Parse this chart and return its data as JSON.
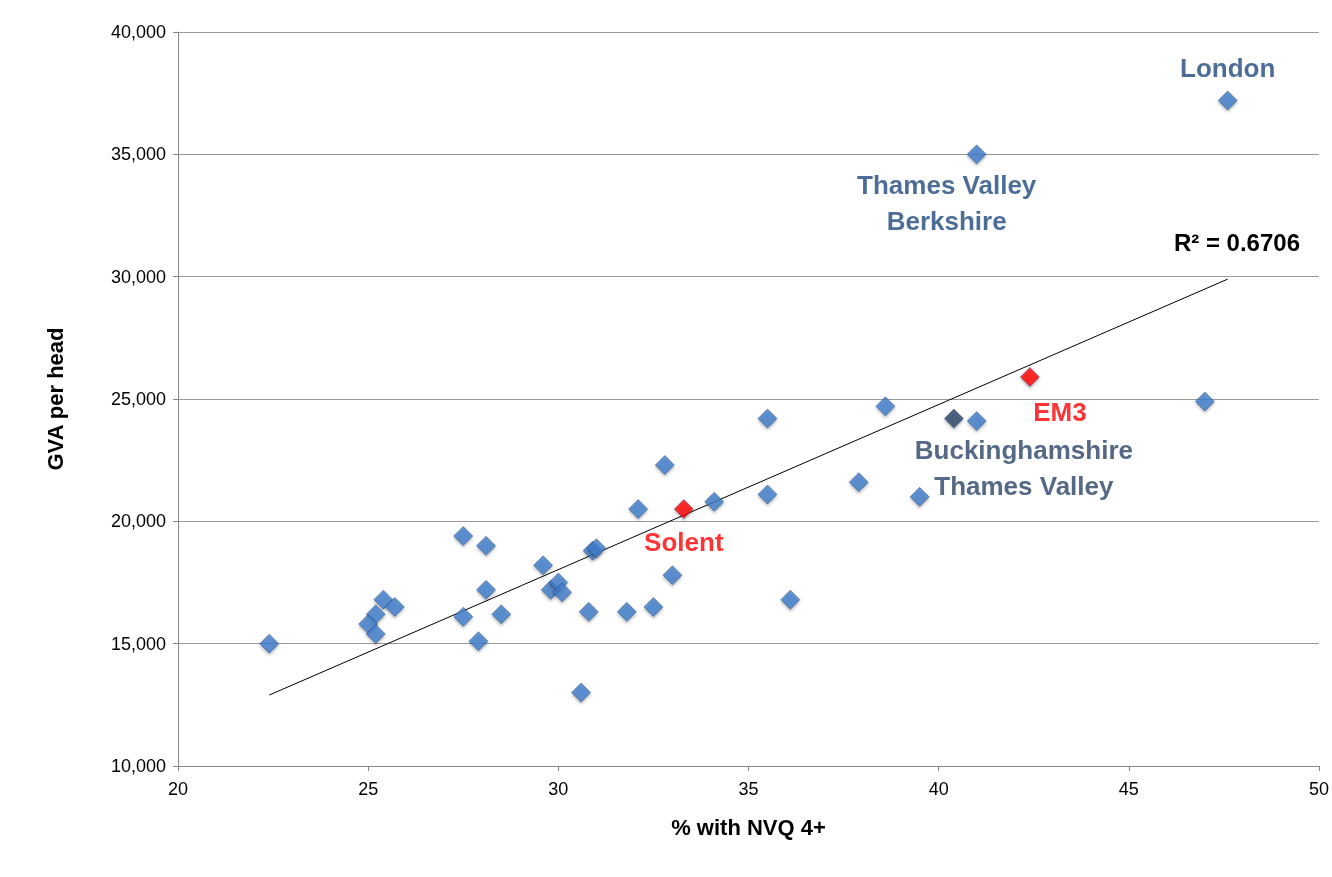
{
  "chart_data": {
    "type": "scatter",
    "xlabel": "% with NVQ 4+",
    "ylabel": "GVA per head",
    "xlim": [
      20,
      50
    ],
    "xticks": [
      20,
      25,
      30,
      35,
      40,
      45,
      50
    ],
    "ylim": [
      10000,
      40000
    ],
    "yticks": [
      {
        "value": 10000,
        "label": "10,000"
      },
      {
        "value": 15000,
        "label": "15,000"
      },
      {
        "value": 20000,
        "label": "20,000"
      },
      {
        "value": 25000,
        "label": "25,000"
      },
      {
        "value": 30000,
        "label": "30,000"
      },
      {
        "value": 35000,
        "label": "35,000"
      },
      {
        "value": 40000,
        "label": "40,000"
      }
    ],
    "grid": "y",
    "marker": "diamond",
    "series": [
      {
        "color": "#3d7cc9",
        "x": [
          22.4,
          25.4,
          25.7,
          25.2,
          25.0,
          25.2,
          27.5,
          28.1,
          28.1,
          27.5,
          28.5,
          27.9,
          29.6,
          29.8,
          30.0,
          30.1,
          30.8,
          31.8,
          32.5,
          30.6,
          30.9,
          31.0,
          32.1,
          32.8,
          33.3,
          34.1,
          35.5,
          35.5,
          33.0,
          36.1,
          37.9,
          38.6,
          40.4,
          41.0,
          39.5,
          47.6,
          41.0,
          42.4,
          47.0
        ],
        "values": [
          15000,
          16800,
          16500,
          16200,
          15800,
          15400,
          19400,
          19000,
          17200,
          16100,
          16200,
          15100,
          18200,
          17200,
          17500,
          17100,
          16300,
          16300,
          16500,
          13000,
          18800,
          18900,
          20500,
          22300,
          20500,
          20800,
          24200,
          21100,
          17800,
          16800,
          21600,
          24700,
          24200,
          24100,
          21000,
          37200,
          35000,
          25900,
          24900
        ],
        "colors": [
          "#3d7cc9",
          "#3d7cc9",
          "#3d7cc9",
          "#3d7cc9",
          "#3d7cc9",
          "#3d7cc9",
          "#3d7cc9",
          "#3d7cc9",
          "#3d7cc9",
          "#3d7cc9",
          "#3d7cc9",
          "#3d7cc9",
          "#3d7cc9",
          "#3d7cc9",
          "#3d7cc9",
          "#3d7cc9",
          "#3d7cc9",
          "#3d7cc9",
          "#3d7cc9",
          "#3d7cc9",
          "#3d7cc9",
          "#3d7cc9",
          "#3d7cc9",
          "#3d7cc9",
          "#ff0000",
          "#3d7cc9",
          "#3d7cc9",
          "#3d7cc9",
          "#3d7cc9",
          "#3d7cc9",
          "#3d7cc9",
          "#3d7cc9",
          "#2a4468",
          "#3d7cc9",
          "#3d7cc9",
          "#3d7cc9",
          "#3d7cc9",
          "#ff0000",
          "#3d7cc9"
        ]
      },
      {
        "type": "line",
        "color": "#000000",
        "x": [
          22.4,
          47.6
        ],
        "values": [
          12900,
          29900
        ],
        "marker": "none"
      }
    ],
    "annotations": [
      {
        "text": "London",
        "x": 47.6,
        "y": 37200
      },
      {
        "text": "Thames Valley\nBerkshire",
        "x": 41.0,
        "y": 35000
      },
      {
        "text": "EM3",
        "x": 42.4,
        "y": 25900
      },
      {
        "text": "Buckinghamshire\nThames Valley",
        "x": 40.4,
        "y": 24200
      },
      {
        "text": "Solent",
        "x": 33.3,
        "y": 20500
      },
      "R² = 0.6706"
    ]
  }
}
